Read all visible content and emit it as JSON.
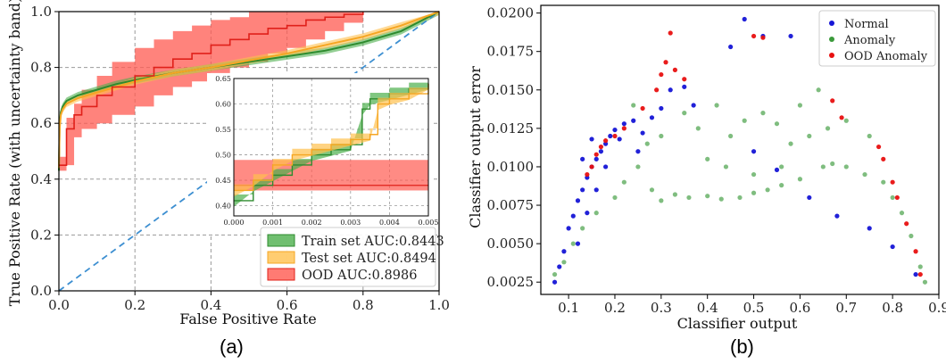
{
  "chart_data": [
    {
      "panel": "(a)",
      "type": "line",
      "xlabel": "False Positive Rate",
      "ylabel": "True Positive Rate (with uncertainty band)",
      "xlim": [
        0,
        1
      ],
      "ylim": [
        0,
        1
      ],
      "xticks": [
        "0.0",
        "0.2",
        "0.4",
        "0.6",
        "0.8",
        "1.0"
      ],
      "yticks": [
        "0.0",
        "0.2",
        "0.4",
        "0.6",
        "0.8",
        "1.0"
      ],
      "grid": true,
      "legend_position": "bottom-right",
      "series": [
        {
          "name": "Train set AUC:0.8443",
          "color": "#2e8b2e",
          "band_color": "#4caf4c",
          "x": [
            0,
            0.002,
            0.005,
            0.01,
            0.02,
            0.05,
            0.1,
            0.15,
            0.2,
            0.3,
            0.4,
            0.5,
            0.6,
            0.7,
            0.8,
            0.9,
            1.0
          ],
          "y": [
            0.43,
            0.6,
            0.64,
            0.66,
            0.68,
            0.7,
            0.72,
            0.74,
            0.755,
            0.78,
            0.8,
            0.82,
            0.84,
            0.86,
            0.89,
            0.93,
            1.0
          ]
        },
        {
          "name": "Test set AUC:0.8494",
          "color": "#f5a623",
          "band_color": "#ffc04d",
          "x": [
            0,
            0.002,
            0.005,
            0.01,
            0.02,
            0.05,
            0.1,
            0.15,
            0.2,
            0.3,
            0.4,
            0.5,
            0.6,
            0.7,
            0.8,
            0.9,
            1.0
          ],
          "y": [
            0.44,
            0.58,
            0.63,
            0.65,
            0.67,
            0.69,
            0.71,
            0.73,
            0.75,
            0.78,
            0.8,
            0.825,
            0.85,
            0.88,
            0.91,
            0.95,
            1.0
          ]
        },
        {
          "name": "OOD AUC:0.8986",
          "color": "#e0201a",
          "band_color": "#ff5a50",
          "x": [
            0,
            0.02,
            0.04,
            0.06,
            0.1,
            0.14,
            0.2,
            0.25,
            0.3,
            0.35,
            0.4,
            0.45,
            0.5,
            0.55,
            0.6,
            0.65,
            0.7,
            0.75,
            0.8
          ],
          "y": [
            0.45,
            0.58,
            0.63,
            0.66,
            0.7,
            0.73,
            0.77,
            0.8,
            0.83,
            0.85,
            0.88,
            0.9,
            0.92,
            0.94,
            0.95,
            0.97,
            0.98,
            0.99,
            1.0
          ],
          "upper": [
            0.48,
            0.62,
            0.67,
            0.72,
            0.77,
            0.82,
            0.87,
            0.9,
            0.93,
            0.95,
            0.97,
            0.98,
            1.0,
            1.0,
            1.0,
            1.0,
            1.0,
            1.0,
            1.0
          ],
          "lower": [
            0.43,
            0.45,
            0.55,
            0.58,
            0.6,
            0.63,
            0.66,
            0.7,
            0.73,
            0.75,
            0.78,
            0.8,
            0.82,
            0.85,
            0.87,
            0.9,
            0.93,
            0.96,
            1.0
          ]
        },
        {
          "name": "",
          "style": "dashed",
          "color": "#3d8fd1",
          "x": [
            0,
            1
          ],
          "y": [
            0,
            1
          ]
        }
      ],
      "inset": {
        "xlim": [
          0,
          0.005
        ],
        "ylim": [
          0.38,
          0.65
        ],
        "xticks": [
          "0.000",
          "0.001",
          "0.002",
          "0.003",
          "0.004",
          "0.005"
        ],
        "yticks": [
          "0.40",
          "0.45",
          "0.50",
          "0.55",
          "0.60",
          "0.65"
        ],
        "train": {
          "x": [
            0,
            0.0005,
            0.001,
            0.0015,
            0.002,
            0.0025,
            0.003,
            0.0033,
            0.0035,
            0.004,
            0.0045,
            0.005
          ],
          "y": [
            0.41,
            0.44,
            0.46,
            0.48,
            0.5,
            0.51,
            0.52,
            0.59,
            0.61,
            0.62,
            0.63,
            0.64
          ]
        },
        "test": {
          "x": [
            0,
            0.0005,
            0.001,
            0.0015,
            0.002,
            0.0025,
            0.003,
            0.0035,
            0.0037,
            0.004,
            0.0045,
            0.005
          ],
          "y": [
            0.43,
            0.45,
            0.48,
            0.5,
            0.51,
            0.52,
            0.53,
            0.54,
            0.6,
            0.61,
            0.62,
            0.64
          ]
        },
        "ood": {
          "y": 0.44,
          "lower": 0.43,
          "upper": 0.49
        }
      }
    },
    {
      "panel": "(b)",
      "type": "scatter",
      "xlabel": "Classifier output",
      "ylabel": "Classifier output error",
      "xlim": [
        0.04,
        0.9
      ],
      "ylim": [
        0.0017,
        0.0205
      ],
      "xticks": [
        "0.1",
        "0.2",
        "0.3",
        "0.4",
        "0.5",
        "0.6",
        "0.7",
        "0.8",
        "0.9"
      ],
      "yticks": [
        "0.0025",
        "0.0050",
        "0.0075",
        "0.0100",
        "0.0125",
        "0.0150",
        "0.0175",
        "0.0200"
      ],
      "grid": false,
      "legend_position": "top-right",
      "series": [
        {
          "name": "Normal",
          "color": "#1515d6",
          "points": [
            [
              0.07,
              0.0025
            ],
            [
              0.08,
              0.0035
            ],
            [
              0.09,
              0.0045
            ],
            [
              0.1,
              0.006
            ],
            [
              0.11,
              0.0068
            ],
            [
              0.12,
              0.0078
            ],
            [
              0.13,
              0.0085
            ],
            [
              0.14,
              0.0093
            ],
            [
              0.15,
              0.01
            ],
            [
              0.16,
              0.0105
            ],
            [
              0.17,
              0.011
            ],
            [
              0.18,
              0.0115
            ],
            [
              0.19,
              0.012
            ],
            [
              0.2,
              0.0124
            ],
            [
              0.22,
              0.0128
            ],
            [
              0.24,
              0.013
            ],
            [
              0.26,
              0.0122
            ],
            [
              0.28,
              0.0132
            ],
            [
              0.3,
              0.0138
            ],
            [
              0.32,
              0.015
            ],
            [
              0.35,
              0.0152
            ],
            [
              0.37,
              0.014
            ],
            [
              0.45,
              0.0178
            ],
            [
              0.48,
              0.0196
            ],
            [
              0.52,
              0.0185
            ],
            [
              0.58,
              0.0185
            ],
            [
              0.5,
              0.011
            ],
            [
              0.55,
              0.0098
            ],
            [
              0.62,
              0.008
            ],
            [
              0.68,
              0.0068
            ],
            [
              0.75,
              0.006
            ],
            [
              0.8,
              0.0048
            ],
            [
              0.85,
              0.003
            ],
            [
              0.12,
              0.005
            ],
            [
              0.14,
              0.007
            ],
            [
              0.16,
              0.0085
            ],
            [
              0.18,
              0.01
            ],
            [
              0.13,
              0.0105
            ],
            [
              0.15,
              0.0118
            ],
            [
              0.21,
              0.0118
            ],
            [
              0.25,
              0.011
            ]
          ]
        },
        {
          "name": "Anomaly",
          "color": "#3a9a3a",
          "points": [
            [
              0.07,
              0.003
            ],
            [
              0.09,
              0.0038
            ],
            [
              0.11,
              0.005
            ],
            [
              0.13,
              0.006
            ],
            [
              0.16,
              0.007
            ],
            [
              0.2,
              0.008
            ],
            [
              0.22,
              0.009
            ],
            [
              0.25,
              0.01
            ],
            [
              0.28,
              0.0085
            ],
            [
              0.3,
              0.0078
            ],
            [
              0.33,
              0.0082
            ],
            [
              0.36,
              0.008
            ],
            [
              0.4,
              0.0081
            ],
            [
              0.43,
              0.0079
            ],
            [
              0.47,
              0.008
            ],
            [
              0.5,
              0.0083
            ],
            [
              0.53,
              0.0085
            ],
            [
              0.56,
              0.0088
            ],
            [
              0.6,
              0.0092
            ],
            [
              0.65,
              0.01
            ],
            [
              0.67,
              0.0102
            ],
            [
              0.7,
              0.01
            ],
            [
              0.74,
              0.0095
            ],
            [
              0.78,
              0.009
            ],
            [
              0.8,
              0.008
            ],
            [
              0.82,
              0.007
            ],
            [
              0.84,
              0.0055
            ],
            [
              0.86,
              0.0035
            ],
            [
              0.87,
              0.0025
            ],
            [
              0.38,
              0.0125
            ],
            [
              0.42,
              0.014
            ],
            [
              0.45,
              0.012
            ],
            [
              0.48,
              0.013
            ],
            [
              0.52,
              0.0135
            ],
            [
              0.55,
              0.0128
            ],
            [
              0.58,
              0.0115
            ],
            [
              0.62,
              0.012
            ],
            [
              0.66,
              0.0125
            ],
            [
              0.7,
              0.013
            ],
            [
              0.75,
              0.012
            ],
            [
              0.35,
              0.0135
            ],
            [
              0.3,
              0.012
            ],
            [
              0.27,
              0.0115
            ],
            [
              0.4,
              0.0105
            ],
            [
              0.44,
              0.01
            ],
            [
              0.5,
              0.0095
            ],
            [
              0.56,
              0.01
            ],
            [
              0.6,
              0.014
            ],
            [
              0.64,
              0.015
            ],
            [
              0.24,
              0.014
            ]
          ]
        },
        {
          "name": "OOD Anomaly",
          "color": "#e81010",
          "points": [
            [
              0.14,
              0.0095
            ],
            [
              0.15,
              0.01
            ],
            [
              0.16,
              0.0108
            ],
            [
              0.17,
              0.0113
            ],
            [
              0.18,
              0.0117
            ],
            [
              0.2,
              0.012
            ],
            [
              0.22,
              0.0125
            ],
            [
              0.26,
              0.0138
            ],
            [
              0.29,
              0.015
            ],
            [
              0.3,
              0.016
            ],
            [
              0.31,
              0.0168
            ],
            [
              0.32,
              0.0187
            ],
            [
              0.33,
              0.0163
            ],
            [
              0.35,
              0.0157
            ],
            [
              0.5,
              0.0185
            ],
            [
              0.52,
              0.0184
            ],
            [
              0.67,
              0.0143
            ],
            [
              0.69,
              0.0132
            ],
            [
              0.77,
              0.0113
            ],
            [
              0.78,
              0.0105
            ],
            [
              0.8,
              0.009
            ],
            [
              0.81,
              0.008
            ],
            [
              0.83,
              0.0063
            ],
            [
              0.85,
              0.0045
            ],
            [
              0.86,
              0.003
            ]
          ]
        }
      ]
    }
  ],
  "captions": [
    "(a)",
    "(b)"
  ]
}
